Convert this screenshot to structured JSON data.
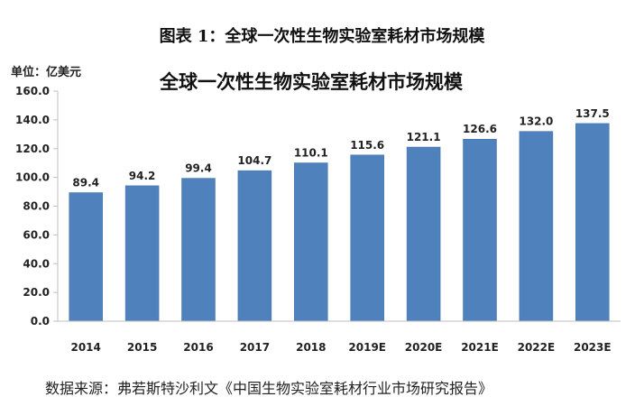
{
  "figure_title": "图表 1：全球一次性生物实验室耗材市场规模",
  "source": "数据来源：弗若斯特沙利文《中国生物实验室耗材行业市场研究报告》",
  "colors": {
    "bar": "#4f81bd",
    "bar_edge": "#3f6fa8",
    "axis": "#bfbfbf"
  },
  "chart_data": {
    "type": "bar",
    "title": "全球一次性生物实验室耗材市场规模",
    "unit_label": "单位：亿美元",
    "xlabel": "",
    "ylabel": "",
    "categories": [
      "2014",
      "2015",
      "2016",
      "2017",
      "2018",
      "2019E",
      "2020E",
      "2021E",
      "2022E",
      "2023E"
    ],
    "values": [
      89.4,
      94.2,
      99.4,
      104.7,
      110.1,
      115.6,
      121.1,
      126.6,
      132.0,
      137.5
    ],
    "value_labels": [
      "89.4",
      "94.2",
      "99.4",
      "104.7",
      "110.1",
      "115.6",
      "121.1",
      "126.6",
      "132.0",
      "137.5"
    ],
    "ylim": [
      0,
      160
    ],
    "yticks": [
      "0.0",
      "20.0",
      "40.0",
      "60.0",
      "80.0",
      "100.0",
      "120.0",
      "140.0",
      "160.0"
    ],
    "grid": false,
    "legend": "none"
  }
}
